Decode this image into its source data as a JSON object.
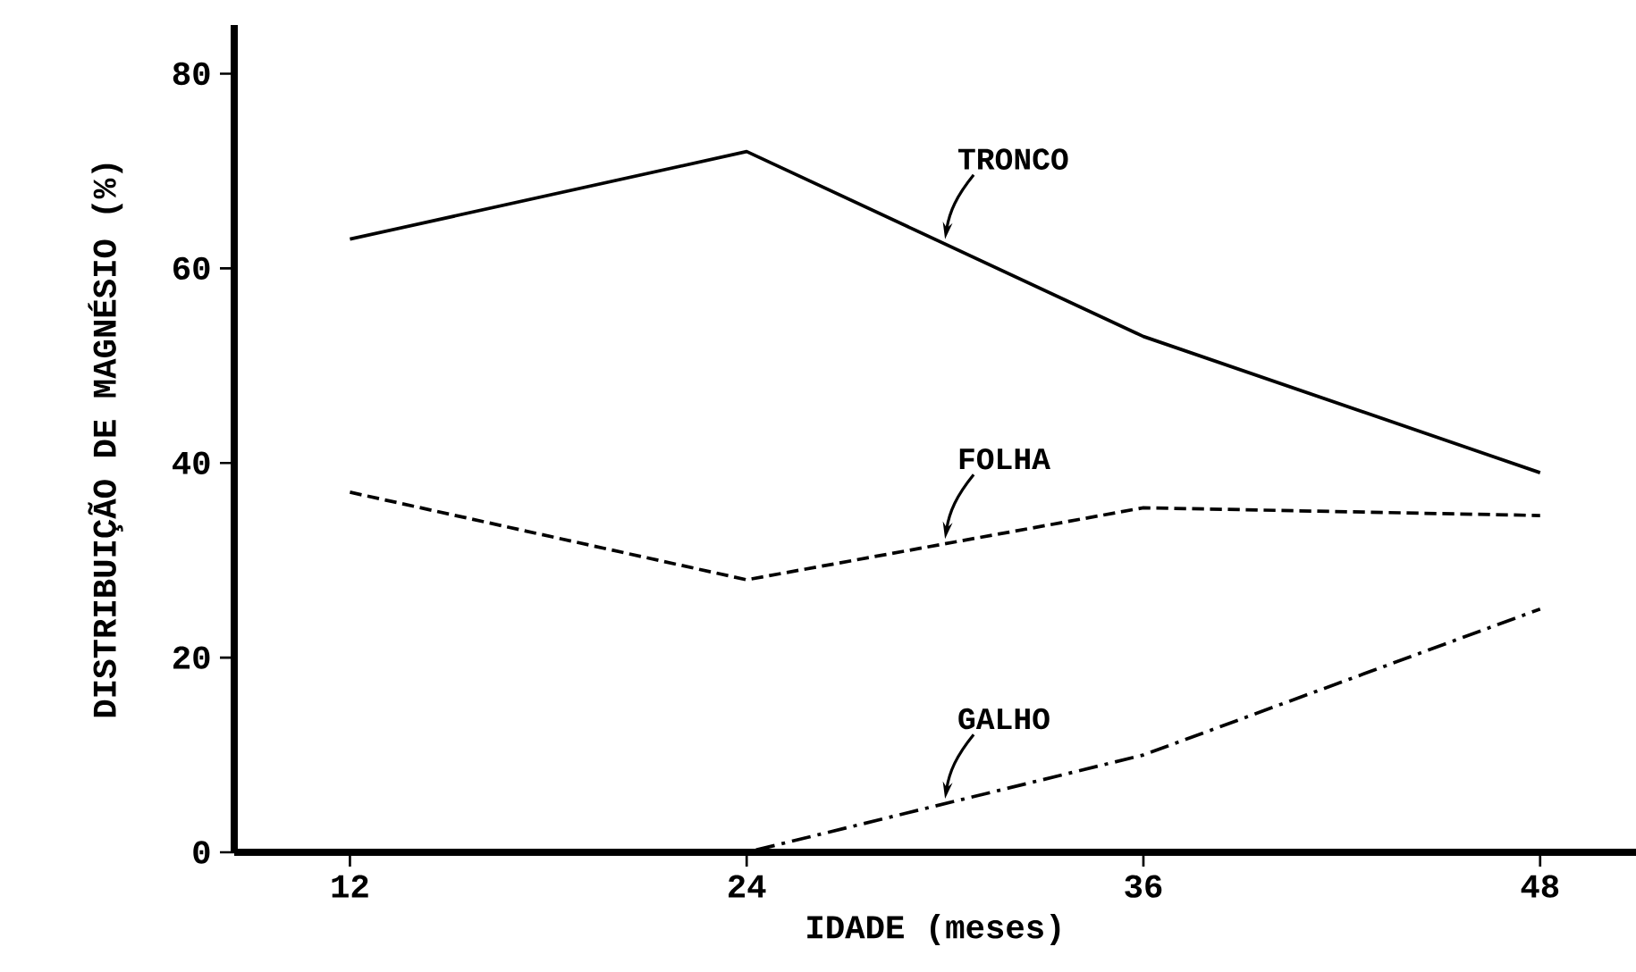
{
  "chart_data": {
    "type": "line",
    "xlabel": "IDADE (meses)",
    "ylabel": "DISTRIBUIÇÃO DE MAGNÉSIO (%)",
    "x": [
      12,
      24,
      36,
      48
    ],
    "series": [
      {
        "name": "TRONCO",
        "color": "#000000",
        "line_style": "solid",
        "values": [
          63,
          72,
          53,
          39
        ]
      },
      {
        "name": "FOLHA",
        "color": "#000000",
        "line_style": "dashed",
        "values": [
          37,
          28,
          35.4,
          34.6
        ]
      },
      {
        "name": "GALHO",
        "color": "#000000",
        "line_style": "dashdot",
        "values": [
          0,
          0,
          10,
          25
        ]
      }
    ],
    "xlim": [
      8.5,
      50.9
    ],
    "ylim": [
      0,
      85
    ],
    "xticks": [
      12,
      24,
      36,
      48
    ],
    "yticks": [
      0,
      20,
      40,
      60,
      80
    ],
    "grid": false,
    "legend": false,
    "marker": "none"
  }
}
